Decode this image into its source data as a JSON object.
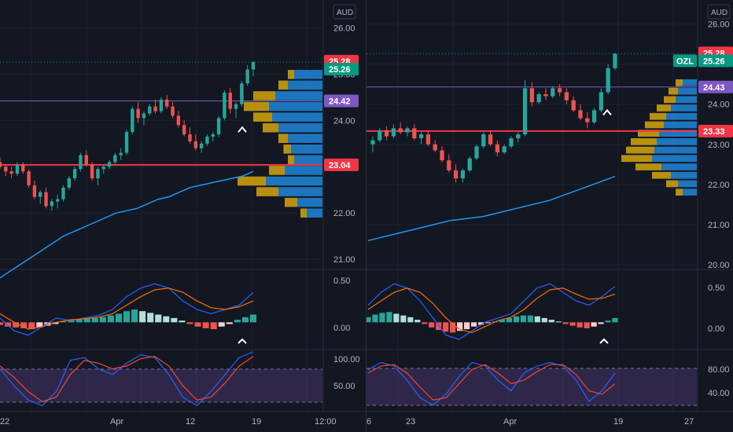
{
  "colors": {
    "background": "#131722",
    "grid": "#1e222d",
    "up": "#26a69a",
    "down": "#ef5350",
    "ma_line": "#2196f3",
    "macd_line": "#2962ff",
    "signal_line": "#ff6d00",
    "hist_up_strong": "#26a69a",
    "hist_up_weak": "#b2dfdb",
    "hist_down_strong": "#ef5350",
    "hist_down_weak": "#ffcdd2",
    "stoch_k": "#2962ff",
    "stoch_d": "#f44336",
    "stoch_band": "#7e57c2",
    "support_line": "#f23645",
    "resistance_line": "#7e57c2",
    "vp_up": "#2196f3",
    "vp_down": "#f0b90b",
    "label_red": "#f23645",
    "label_teal": "#089981",
    "label_purple": "#7e57c2"
  },
  "panels": [
    {
      "currency": "AUD",
      "price_axis": [
        "26.00",
        "25.00",
        "24.00",
        "23.00",
        "22.00",
        "21.00"
      ],
      "price_labels": {
        "high": "25.28",
        "last": "25.26",
        "resistance": "24.42",
        "support": "23.04"
      },
      "symbol_tag": "",
      "macd_axis": [
        "0.50",
        "0.00"
      ],
      "stoch_axis": [
        "100.00",
        "50.00"
      ],
      "time_axis": [
        "22",
        "Apr",
        "12",
        "19",
        "12:00"
      ],
      "chart_data": [
        {
          "type": "candlestick",
          "series": "price",
          "ylim": [
            20.8,
            26.6
          ],
          "ohlc": [
            [
              23.1,
              23.2,
              22.95,
              23.0
            ],
            [
              23.0,
              23.05,
              22.8,
              22.9
            ],
            [
              22.9,
              23.0,
              22.75,
              22.85
            ],
            [
              22.85,
              23.1,
              22.8,
              23.05
            ],
            [
              23.05,
              23.1,
              22.85,
              22.9
            ],
            [
              22.9,
              22.95,
              22.55,
              22.6
            ],
            [
              22.6,
              22.7,
              22.3,
              22.35
            ],
            [
              22.35,
              22.5,
              22.2,
              22.45
            ],
            [
              22.45,
              22.55,
              22.1,
              22.15
            ],
            [
              22.15,
              22.3,
              22.05,
              22.25
            ],
            [
              22.25,
              22.4,
              22.1,
              22.3
            ],
            [
              22.3,
              22.6,
              22.25,
              22.55
            ],
            [
              22.55,
              22.8,
              22.5,
              22.75
            ],
            [
              22.75,
              23.0,
              22.7,
              22.95
            ],
            [
              22.95,
              23.3,
              22.9,
              23.25
            ],
            [
              23.25,
              23.35,
              23.0,
              23.05
            ],
            [
              23.05,
              23.1,
              22.7,
              22.75
            ],
            [
              22.75,
              23.0,
              22.6,
              22.95
            ],
            [
              22.95,
              23.05,
              22.85,
              23.0
            ],
            [
              23.0,
              23.15,
              22.95,
              23.1
            ],
            [
              23.1,
              23.3,
              23.05,
              23.25
            ],
            [
              23.25,
              23.4,
              23.15,
              23.3
            ],
            [
              23.3,
              23.8,
              23.25,
              23.75
            ],
            [
              23.75,
              24.3,
              23.7,
              24.25
            ],
            [
              24.25,
              24.4,
              23.95,
              24.05
            ],
            [
              24.05,
              24.2,
              23.9,
              24.15
            ],
            [
              24.15,
              24.35,
              24.1,
              24.3
            ],
            [
              24.3,
              24.45,
              24.15,
              24.2
            ],
            [
              24.2,
              24.5,
              24.15,
              24.45
            ],
            [
              24.45,
              24.55,
              24.25,
              24.3
            ],
            [
              24.3,
              24.4,
              24.05,
              24.1
            ],
            [
              24.1,
              24.2,
              23.85,
              23.9
            ],
            [
              23.9,
              24.0,
              23.65,
              23.7
            ],
            [
              23.7,
              23.85,
              23.5,
              23.55
            ],
            [
              23.55,
              23.7,
              23.35,
              23.4
            ],
            [
              23.4,
              23.55,
              23.3,
              23.5
            ],
            [
              23.5,
              23.7,
              23.45,
              23.65
            ],
            [
              23.65,
              23.75,
              23.55,
              23.7
            ],
            [
              23.7,
              24.1,
              23.65,
              24.05
            ],
            [
              24.05,
              24.65,
              24.0,
              24.6
            ],
            [
              24.6,
              24.7,
              24.15,
              24.25
            ],
            [
              24.25,
              24.4,
              24.05,
              24.35
            ],
            [
              24.35,
              24.85,
              24.3,
              24.8
            ],
            [
              24.8,
              25.2,
              24.75,
              25.1
            ],
            [
              25.1,
              25.28,
              24.95,
              25.26
            ]
          ]
        },
        {
          "type": "line",
          "series": "moving-average",
          "y": [
            20.6,
            20.75,
            20.9,
            21.05,
            21.2,
            21.35,
            21.5,
            21.6,
            21.7,
            21.8,
            21.9,
            22.0,
            22.05,
            22.1,
            22.2,
            22.3,
            22.35,
            22.45,
            22.55,
            22.6,
            22.65,
            22.7,
            22.75,
            22.8,
            22.9
          ]
        },
        {
          "type": "line",
          "series": "macd",
          "ylim": [
            -0.3,
            0.6
          ],
          "y": [
            0.05,
            -0.1,
            -0.15,
            -0.05,
            0.05,
            0.02,
            0.05,
            0.08,
            0.15,
            0.3,
            0.4,
            0.45,
            0.4,
            0.25,
            0.15,
            0.1,
            0.15,
            0.2,
            0.35
          ]
        },
        {
          "type": "line",
          "series": "signal",
          "y": [
            0.1,
            0.0,
            -0.08,
            -0.05,
            0.0,
            0.03,
            0.04,
            0.06,
            0.1,
            0.2,
            0.3,
            0.38,
            0.4,
            0.35,
            0.25,
            0.17,
            0.15,
            0.18,
            0.25
          ]
        },
        {
          "type": "bar",
          "series": "histogram",
          "values": [
            -0.03,
            -0.05,
            -0.06,
            -0.07,
            -0.08,
            -0.06,
            -0.04,
            -0.02,
            0.01,
            0.02,
            0.03,
            0.04,
            0.05,
            0.06,
            0.08,
            0.1,
            0.13,
            0.15,
            0.13,
            0.11,
            0.09,
            0.07,
            0.05,
            0.02,
            -0.02,
            -0.05,
            -0.07,
            -0.08,
            -0.05,
            -0.02,
            0.03,
            0.06,
            0.09
          ]
        },
        {
          "type": "line",
          "series": "stoch-k",
          "ylim": [
            0,
            100
          ],
          "y": [
            70,
            40,
            15,
            5,
            30,
            85,
            90,
            70,
            60,
            80,
            95,
            90,
            60,
            20,
            5,
            30,
            60,
            90,
            100
          ]
        },
        {
          "type": "line",
          "series": "stoch-d",
          "y": [
            75,
            55,
            30,
            12,
            20,
            60,
            85,
            80,
            70,
            75,
            88,
            92,
            75,
            40,
            15,
            20,
            45,
            75,
            92
          ]
        },
        {
          "type": "bar",
          "series": "volume-profile",
          "up": [
            0.45,
            0.55,
            0.75,
            0.85,
            0.8,
            0.7,
            0.55,
            0.5,
            0.45,
            0.6,
            0.9,
            0.7,
            0.4,
            0.25
          ],
          "down": [
            0.1,
            0.15,
            0.35,
            0.4,
            0.3,
            0.25,
            0.15,
            0.12,
            0.1,
            0.25,
            0.45,
            0.35,
            0.2,
            0.1
          ]
        }
      ]
    },
    {
      "currency": "AUD",
      "price_axis": [
        "26.00",
        "25.00",
        "24.00",
        "23.00",
        "22.00",
        "21.00",
        "20.00"
      ],
      "price_labels": {
        "high": "25.28",
        "last": "25.26",
        "resistance": "24.43",
        "support": "23.33"
      },
      "symbol_tag": "OZL",
      "macd_axis": [
        "0.50",
        "0.00"
      ],
      "stoch_axis": [
        "80.00",
        "40.00"
      ],
      "time_axis": [
        "6",
        "23",
        "Apr",
        "19",
        "27"
      ],
      "chart_data": [
        {
          "type": "candlestick",
          "series": "price",
          "ylim": [
            19.9,
            26.6
          ],
          "ohlc": [
            [
              23.0,
              23.2,
              22.8,
              23.1
            ],
            [
              23.1,
              23.4,
              23.05,
              23.35
            ],
            [
              23.35,
              23.45,
              23.1,
              23.2
            ],
            [
              23.2,
              23.5,
              23.15,
              23.4
            ],
            [
              23.4,
              23.55,
              23.25,
              23.3
            ],
            [
              23.3,
              23.45,
              23.2,
              23.4
            ],
            [
              23.4,
              23.5,
              23.1,
              23.15
            ],
            [
              23.15,
              23.3,
              23.0,
              23.25
            ],
            [
              23.25,
              23.35,
              22.95,
              23.0
            ],
            [
              23.0,
              23.1,
              22.8,
              22.85
            ],
            [
              22.85,
              22.95,
              22.55,
              22.6
            ],
            [
              22.6,
              22.75,
              22.3,
              22.35
            ],
            [
              22.35,
              22.5,
              22.05,
              22.15
            ],
            [
              22.15,
              22.4,
              22.05,
              22.35
            ],
            [
              22.35,
              22.7,
              22.3,
              22.65
            ],
            [
              22.65,
              23.0,
              22.6,
              22.95
            ],
            [
              22.95,
              23.3,
              22.9,
              23.25
            ],
            [
              23.25,
              23.35,
              22.95,
              23.0
            ],
            [
              23.0,
              23.1,
              22.7,
              22.8
            ],
            [
              22.8,
              23.0,
              22.75,
              22.95
            ],
            [
              22.95,
              23.2,
              22.9,
              23.15
            ],
            [
              23.15,
              23.3,
              23.05,
              23.25
            ],
            [
              23.25,
              24.6,
              23.2,
              24.4
            ],
            [
              24.4,
              24.55,
              23.95,
              24.05
            ],
            [
              24.05,
              24.3,
              24.0,
              24.25
            ],
            [
              24.25,
              24.4,
              24.1,
              24.2
            ],
            [
              24.2,
              24.45,
              24.15,
              24.4
            ],
            [
              24.4,
              24.5,
              24.2,
              24.3
            ],
            [
              24.3,
              24.4,
              24.0,
              24.1
            ],
            [
              24.1,
              24.2,
              23.8,
              23.85
            ],
            [
              23.85,
              24.0,
              23.6,
              23.65
            ],
            [
              23.65,
              23.8,
              23.4,
              23.55
            ],
            [
              23.55,
              23.9,
              23.5,
              23.85
            ],
            [
              23.85,
              24.4,
              23.8,
              24.3
            ],
            [
              24.3,
              25.0,
              24.25,
              24.9
            ],
            [
              24.9,
              25.28,
              24.85,
              25.26
            ]
          ]
        },
        {
          "type": "line",
          "series": "moving-average",
          "y": [
            20.6,
            20.7,
            20.8,
            20.9,
            21.0,
            21.1,
            21.15,
            21.2,
            21.3,
            21.4,
            21.5,
            21.6,
            21.75,
            21.9,
            22.05,
            22.2
          ]
        },
        {
          "type": "line",
          "series": "macd",
          "ylim": [
            -0.3,
            0.6
          ],
          "y": [
            0.2,
            0.35,
            0.45,
            0.4,
            0.25,
            0.05,
            -0.15,
            -0.2,
            -0.1,
            0.0,
            0.05,
            0.1,
            0.25,
            0.4,
            0.45,
            0.35,
            0.25,
            0.2,
            0.3,
            0.42
          ]
        },
        {
          "type": "line",
          "series": "signal",
          "y": [
            0.15,
            0.25,
            0.35,
            0.4,
            0.35,
            0.22,
            0.05,
            -0.08,
            -0.12,
            -0.05,
            0.02,
            0.06,
            0.15,
            0.28,
            0.38,
            0.4,
            0.33,
            0.27,
            0.28,
            0.33
          ]
        },
        {
          "type": "bar",
          "series": "histogram",
          "values": [
            0.06,
            0.09,
            0.11,
            0.12,
            0.1,
            0.08,
            0.06,
            0.03,
            -0.02,
            -0.06,
            -0.09,
            -0.11,
            -0.12,
            -0.1,
            -0.08,
            -0.05,
            -0.03,
            -0.01,
            0.01,
            0.03,
            0.05,
            0.07,
            0.08,
            0.08,
            0.07,
            0.05,
            0.03,
            0.01,
            -0.02,
            -0.04,
            -0.06,
            -0.07,
            -0.05,
            -0.02,
            0.02,
            0.05
          ]
        },
        {
          "type": "line",
          "series": "stoch-k",
          "ylim": [
            20,
            100
          ],
          "y": [
            75,
            85,
            80,
            60,
            35,
            25,
            40,
            65,
            85,
            80,
            60,
            45,
            70,
            80,
            85,
            80,
            60,
            30,
            45,
            70
          ]
        },
        {
          "type": "line",
          "series": "stoch-d",
          "y": [
            70,
            80,
            82,
            70,
            50,
            32,
            35,
            55,
            75,
            82,
            70,
            55,
            60,
            72,
            82,
            82,
            68,
            45,
            40,
            55
          ]
        },
        {
          "type": "bar",
          "series": "volume-profile",
          "up": [
            0.3,
            0.4,
            0.45,
            0.55,
            0.65,
            0.7,
            0.8,
            0.85,
            0.9,
            0.95,
            0.75,
            0.55,
            0.4,
            0.3
          ],
          "down": [
            0.15,
            0.2,
            0.25,
            0.3,
            0.35,
            0.4,
            0.45,
            0.55,
            0.6,
            0.65,
            0.55,
            0.4,
            0.25,
            0.15
          ]
        }
      ]
    }
  ]
}
